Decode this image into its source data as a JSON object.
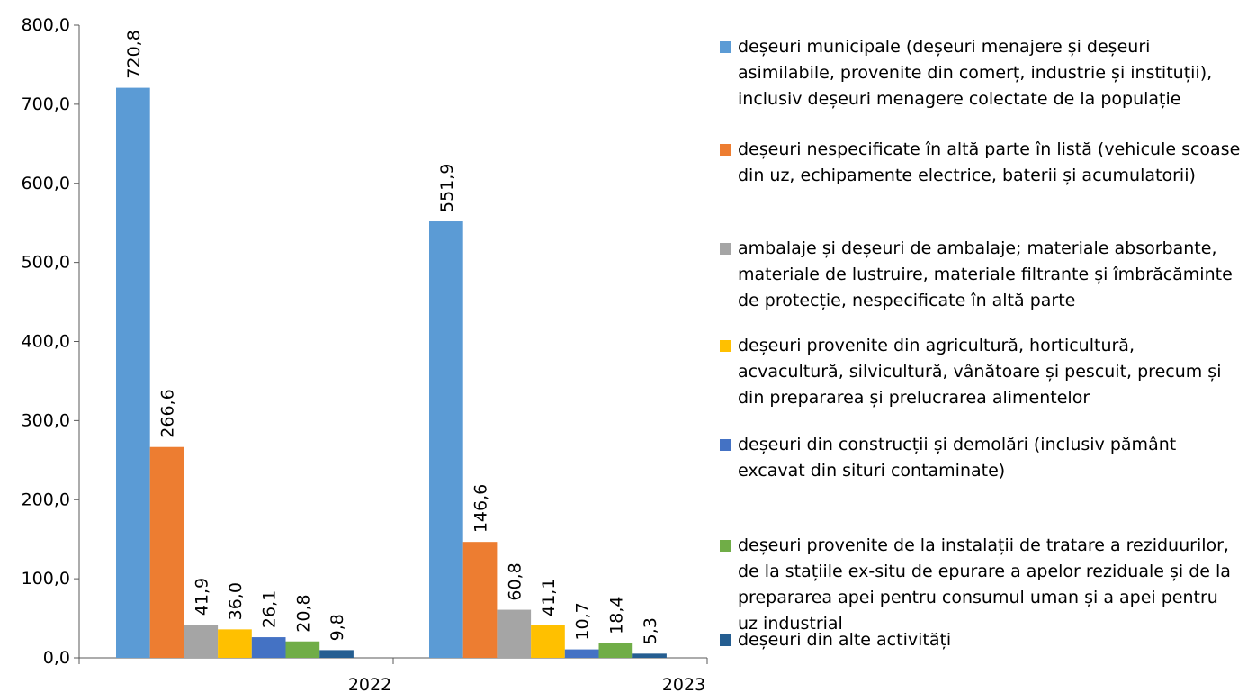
{
  "chart_data": {
    "type": "bar",
    "categories": [
      "2022",
      "2023"
    ],
    "ylim": [
      0,
      800
    ],
    "yticks": [
      "0,0",
      "100,0",
      "200,0",
      "300,0",
      "400,0",
      "500,0",
      "600,0",
      "700,0",
      "800,0"
    ],
    "grid": false,
    "legend_position": "right",
    "series": [
      {
        "name": "deșeuri municipale (deșeuri menajere și deșeuri\nasimilabile, provenite din comerț, industrie și instituții),\ninclusiv deșeuri menagere colectate de la populație",
        "color": "#5B9BD5",
        "values": [
          720.8,
          551.9
        ],
        "labels": [
          "720,8",
          "551,9"
        ]
      },
      {
        "name": "deșeuri nespecificate în altă parte în listă (vehicule scoase\ndin uz, echipamente electrice, baterii și acumulatorii)",
        "color": "#ED7D31",
        "values": [
          266.6,
          146.6
        ],
        "labels": [
          "266,6",
          "146,6"
        ]
      },
      {
        "name": "ambalaje și deșeuri de ambalaje; materiale absorbante,\nmateriale de lustruire, materiale filtrante și îmbrăcăminte\nde protecție, nespecificate în altă parte",
        "color": "#A5A5A5",
        "values": [
          41.9,
          60.8
        ],
        "labels": [
          "41,9",
          "60,8"
        ]
      },
      {
        "name": "deșeuri provenite din agricultură, horticultură,\nacvacultură, silvicultură, vânătoare și pescuit, precum și\ndin prepararea și prelucrarea alimentelor",
        "color": "#FFC000",
        "values": [
          36.0,
          41.1
        ],
        "labels": [
          "36,0",
          "41,1"
        ]
      },
      {
        "name": "deșeuri din construcții și demolări (inclusiv pământ\nexcavat din situri contaminate)",
        "color": "#4472C4",
        "values": [
          26.1,
          10.7
        ],
        "labels": [
          "26,1",
          "10,7"
        ]
      },
      {
        "name": "deșeuri provenite de la instalații de tratare a reziduurilor,\nde la stațiile ex-situ de epurare a apelor reziduale și de la\nprepararea apei pentru consumul uman și a apei pentru\nuz industrial",
        "color": "#70AD47",
        "values": [
          20.8,
          18.4
        ],
        "labels": [
          "20,8",
          "18,4"
        ]
      },
      {
        "name": "deșeuri din alte activități",
        "color": "#255E91",
        "values": [
          9.8,
          5.3
        ],
        "labels": [
          "9,8",
          "5,3"
        ]
      }
    ]
  }
}
